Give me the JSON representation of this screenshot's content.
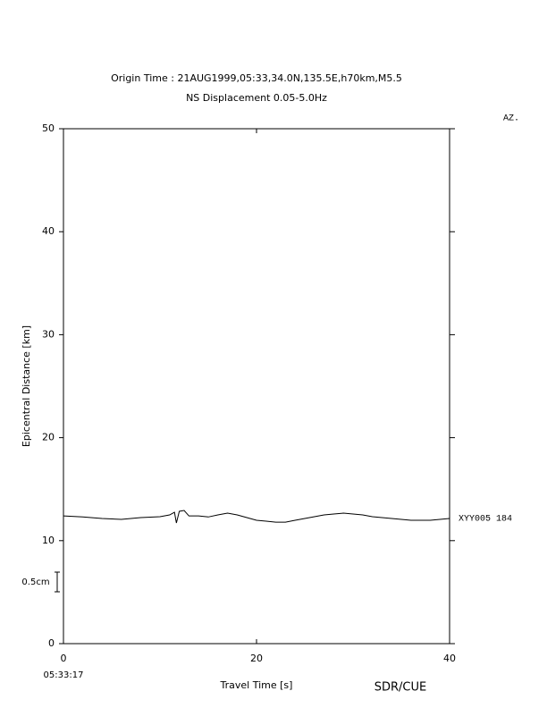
{
  "chart_data": {
    "type": "line",
    "title": "Origin Time : 21AUG1999,05:33,34.0N,135.5E,h70km,M5.5",
    "subtitle": "NS Displacement 0.05-5.0Hz",
    "corner_label": "AZ.",
    "x_label": "Travel Time [s]",
    "y_label": "Epicentral Distance [km]",
    "start_time": "05:33:17",
    "scale_label": "0.5cm",
    "footer": "SDR/CUE",
    "x": [
      0,
      2,
      4,
      6,
      8,
      10,
      11,
      11.5,
      11.7,
      12,
      12.5,
      13,
      14,
      15,
      16,
      17,
      18,
      19,
      20,
      21,
      22,
      23,
      24,
      25,
      26,
      27,
      28,
      29,
      30,
      31,
      32,
      33,
      34,
      35,
      36,
      37,
      38,
      39,
      40
    ],
    "series": [
      {
        "name": "XYY005 184",
        "color": "#000000",
        "values": [
          12.4,
          12.3,
          12.15,
          12.07,
          12.24,
          12.33,
          12.5,
          12.76,
          11.72,
          12.85,
          12.93,
          12.4,
          12.4,
          12.3,
          12.5,
          12.67,
          12.5,
          12.24,
          11.98,
          11.89,
          11.8,
          11.8,
          11.98,
          12.15,
          12.33,
          12.5,
          12.59,
          12.67,
          12.59,
          12.5,
          12.33,
          12.24,
          12.15,
          12.07,
          11.98,
          11.98,
          11.98,
          12.07,
          12.15
        ]
      }
    ],
    "xlim": [
      0,
      40
    ],
    "xticks": [
      0,
      20,
      40
    ],
    "ylim": [
      0,
      50
    ],
    "yticks": [
      0,
      10,
      20,
      30,
      40,
      50
    ]
  }
}
